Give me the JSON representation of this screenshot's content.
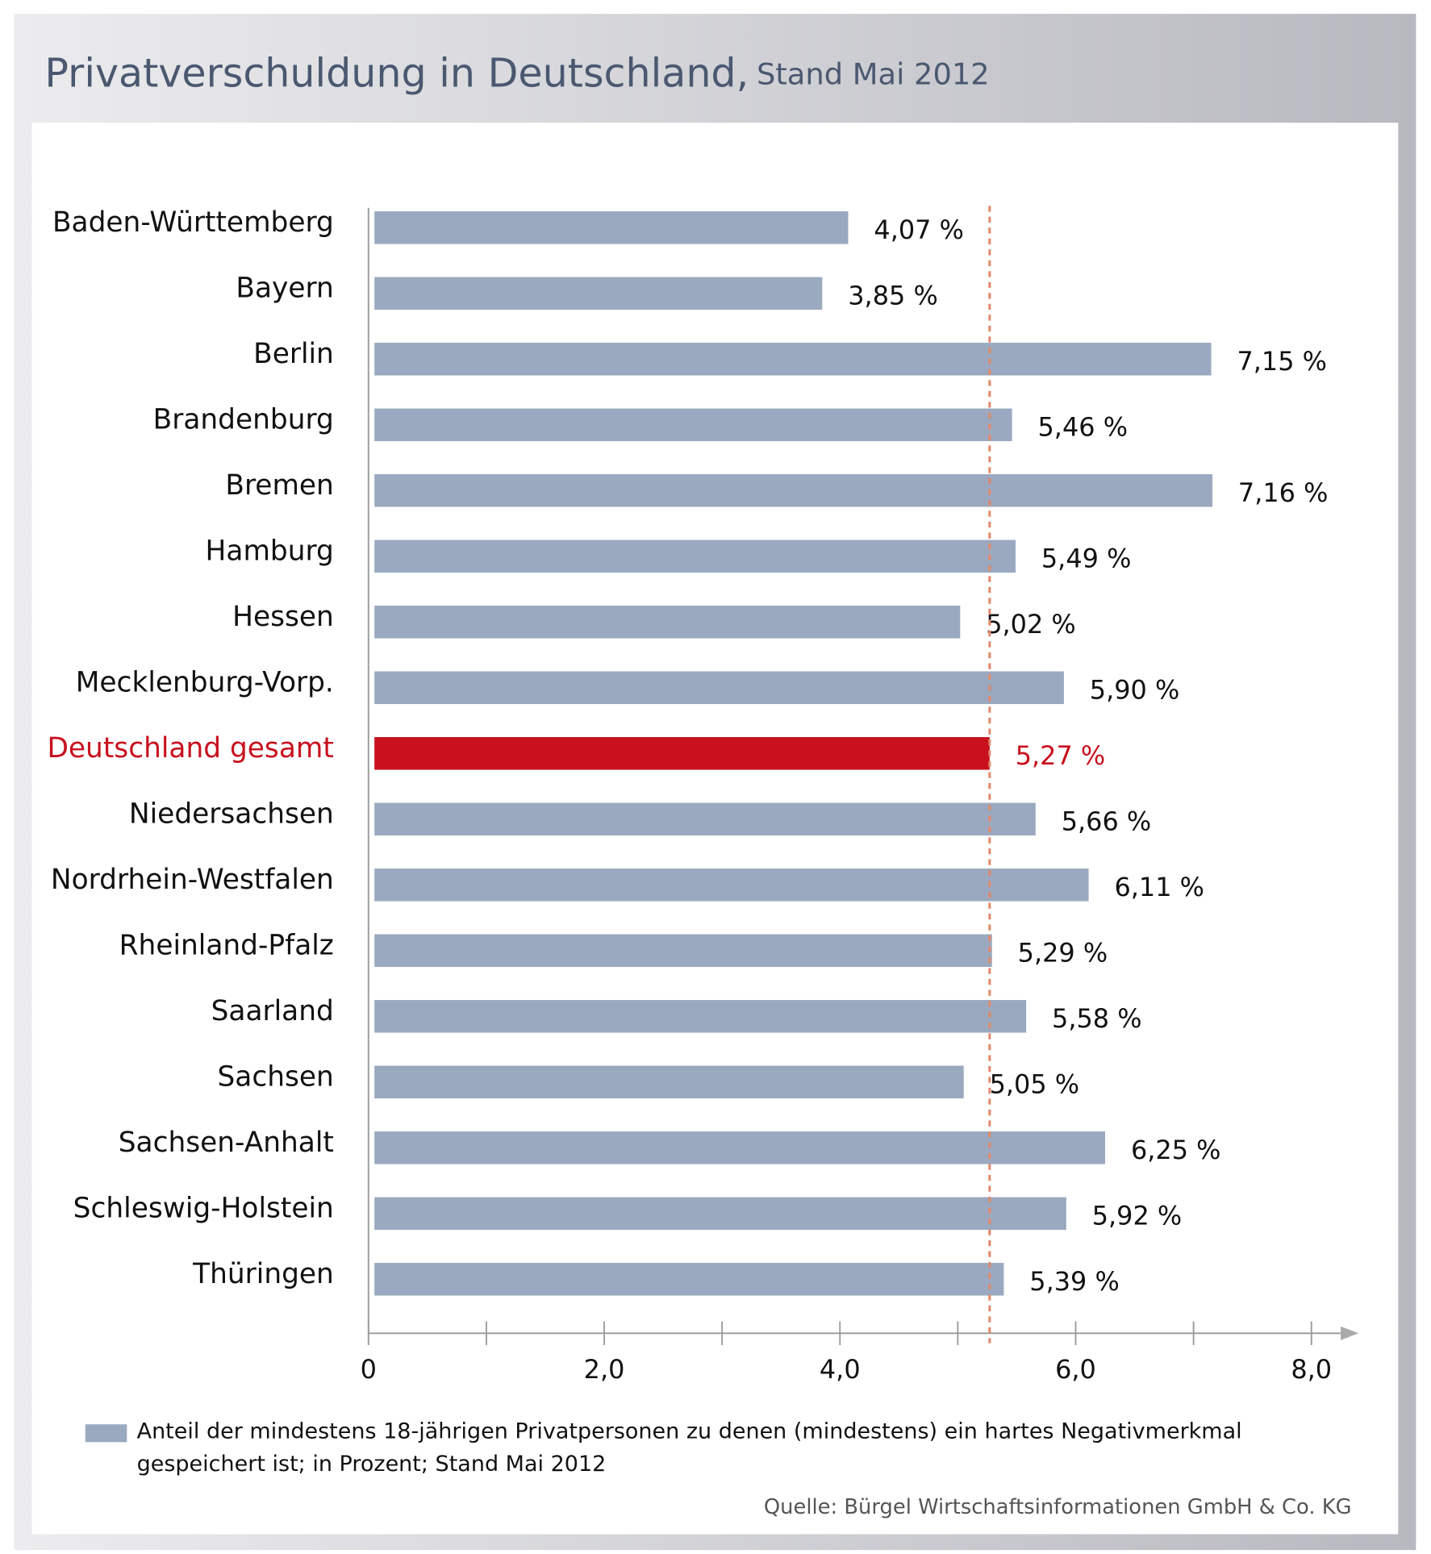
{
  "chart_data": {
    "type": "hbar",
    "title": "Privatverschuldung in Deutschland,",
    "subtitle": "Stand Mai 2012",
    "categories": [
      "Baden-Württemberg",
      "Bayern",
      "Berlin",
      "Brandenburg",
      "Bremen",
      "Hamburg",
      "Hessen",
      "Mecklenburg-Vorp.",
      "Deutschland gesamt",
      "Niedersachsen",
      "Nordrhein-Westfalen",
      "Rheinland-Pfalz",
      "Saarland",
      "Sachsen",
      "Sachsen-Anhalt",
      "Schleswig-Holstein",
      "Thüringen"
    ],
    "series": [
      {
        "name": "Anteil der mindestens 18-jährigen Privatpersonen zu denen (mindestens) ein hartes Negativmerkmal gespeichert ist; in Prozent; Stand Mai 2012",
        "color": "#9aa9c0",
        "values": [
          4.07,
          3.85,
          7.15,
          5.46,
          7.16,
          5.49,
          5.02,
          5.9,
          5.27,
          5.66,
          6.11,
          5.29,
          5.58,
          5.05,
          6.25,
          5.92,
          5.39
        ],
        "value_labels": [
          "4,07 %",
          "3,85 %",
          "7,15 %",
          "5,46 %",
          "7,16 %",
          "5,49 %",
          "5,02 %",
          "5,90 %",
          "5,27 %",
          "5,66 %",
          "6,11 %",
          "5,29 %",
          "5,58 %",
          "5,05 %",
          "6,25 %",
          "5,92 %",
          "5,39 %"
        ]
      }
    ],
    "highlight_category": "Deutschland gesamt",
    "highlight_color": "#c8101e",
    "reference_line": {
      "value": 5.27,
      "color": "#e08a6c"
    },
    "xlim": [
      0,
      8.4
    ],
    "xticks": [
      0,
      {
        "value": 2,
        "label": "2,0"
      },
      {
        "value": 4,
        "label": "4,0"
      },
      {
        "value": 6,
        "label": "6,0"
      },
      {
        "value": 8,
        "label": "8,0"
      }
    ],
    "xminorticks": [
      1,
      3,
      5,
      7
    ],
    "source": "Quelle: Bürgel Wirtschaftsinformationen GmbH & Co. KG"
  }
}
